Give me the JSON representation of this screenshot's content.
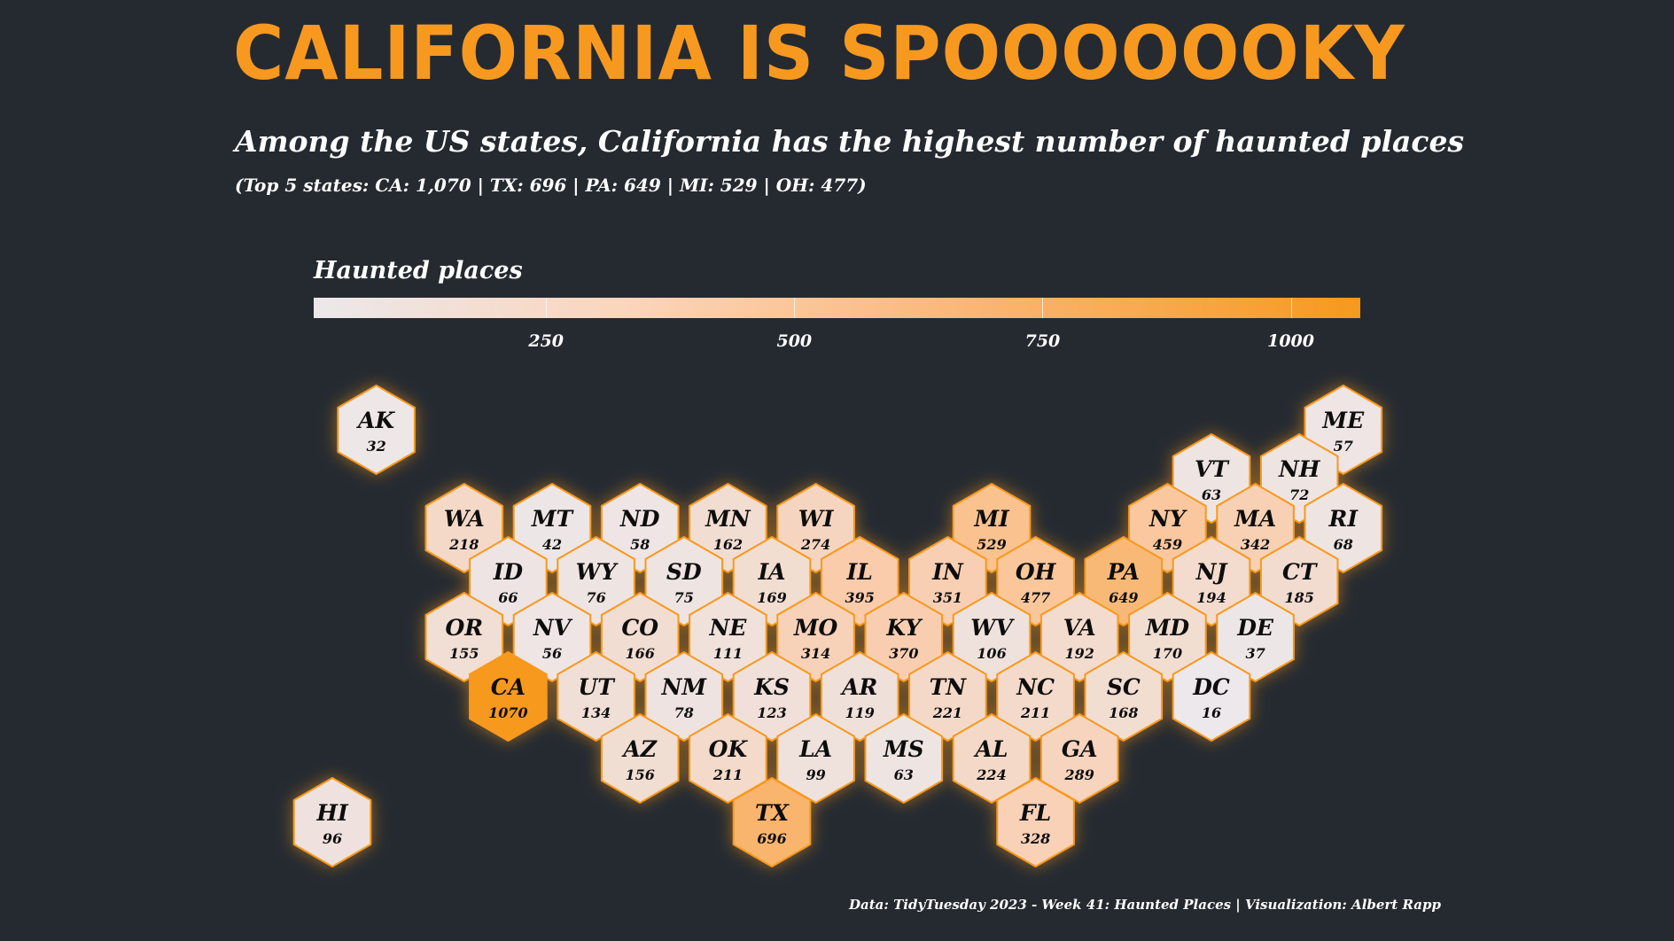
{
  "header": {
    "title": "CALIFORNIA IS SPOOOOOOKY",
    "subtitle": "Among the US states, California has the highest number of haunted places",
    "note": "(Top 5 states: CA: 1,070 | TX: 696 | PA: 649 | MI: 529 | OH: 477)"
  },
  "legend": {
    "title": "Haunted places",
    "ticks": [
      {
        "value": 250,
        "label": "250"
      },
      {
        "value": 500,
        "label": "500"
      },
      {
        "value": 750,
        "label": "750"
      },
      {
        "value": 1000,
        "label": "1000"
      }
    ]
  },
  "caption": "Data: TidyTuesday 2023 - Week 41: Haunted Places | Visualization: Albert Rapp",
  "colors": {
    "background": "#252a31",
    "accent": "#f7991f",
    "low": "#ece8eb",
    "hex_border": "#f7991f",
    "label": "#111111"
  },
  "chart_data": {
    "type": "heatmap",
    "title": "CALIFORNIA IS SPOOOOOOKY",
    "subtitle": "Among the US states, California has the highest number of haunted places",
    "legend_title": "Haunted places",
    "color_range": [
      16,
      1070
    ],
    "states": [
      {
        "abbr": "AK",
        "value": 32,
        "row": 0,
        "col": 0.5
      },
      {
        "abbr": "ME",
        "value": 57,
        "row": 0,
        "col": 11.5
      },
      {
        "abbr": "VT",
        "value": 63,
        "row": 1,
        "col": 10
      },
      {
        "abbr": "NH",
        "value": 72,
        "row": 1,
        "col": 11
      },
      {
        "abbr": "WA",
        "value": 218,
        "row": 2,
        "col": 1.5
      },
      {
        "abbr": "MT",
        "value": 42,
        "row": 2,
        "col": 2.5
      },
      {
        "abbr": "ND",
        "value": 58,
        "row": 2,
        "col": 3.5
      },
      {
        "abbr": "MN",
        "value": 162,
        "row": 2,
        "col": 4.5
      },
      {
        "abbr": "WI",
        "value": 274,
        "row": 2,
        "col": 5.5
      },
      {
        "abbr": "MI",
        "value": 529,
        "row": 2,
        "col": 7.5
      },
      {
        "abbr": "NY",
        "value": 459,
        "row": 2,
        "col": 9.5
      },
      {
        "abbr": "MA",
        "value": 342,
        "row": 2,
        "col": 10.5
      },
      {
        "abbr": "RI",
        "value": 68,
        "row": 2,
        "col": 11.5
      },
      {
        "abbr": "ID",
        "value": 66,
        "row": 3,
        "col": 2
      },
      {
        "abbr": "WY",
        "value": 76,
        "row": 3,
        "col": 3
      },
      {
        "abbr": "SD",
        "value": 75,
        "row": 3,
        "col": 4
      },
      {
        "abbr": "IA",
        "value": 169,
        "row": 3,
        "col": 5
      },
      {
        "abbr": "IL",
        "value": 395,
        "row": 3,
        "col": 6
      },
      {
        "abbr": "IN",
        "value": 351,
        "row": 3,
        "col": 7
      },
      {
        "abbr": "OH",
        "value": 477,
        "row": 3,
        "col": 8
      },
      {
        "abbr": "PA",
        "value": 649,
        "row": 3,
        "col": 9
      },
      {
        "abbr": "NJ",
        "value": 194,
        "row": 3,
        "col": 10
      },
      {
        "abbr": "CT",
        "value": 185,
        "row": 3,
        "col": 11
      },
      {
        "abbr": "OR",
        "value": 155,
        "row": 4,
        "col": 1.5
      },
      {
        "abbr": "NV",
        "value": 56,
        "row": 4,
        "col": 2.5
      },
      {
        "abbr": "CO",
        "value": 166,
        "row": 4,
        "col": 3.5
      },
      {
        "abbr": "NE",
        "value": 111,
        "row": 4,
        "col": 4.5
      },
      {
        "abbr": "MO",
        "value": 314,
        "row": 4,
        "col": 5.5
      },
      {
        "abbr": "KY",
        "value": 370,
        "row": 4,
        "col": 6.5
      },
      {
        "abbr": "WV",
        "value": 106,
        "row": 4,
        "col": 7.5
      },
      {
        "abbr": "VA",
        "value": 192,
        "row": 4,
        "col": 8.5
      },
      {
        "abbr": "MD",
        "value": 170,
        "row": 4,
        "col": 9.5
      },
      {
        "abbr": "DE",
        "value": 37,
        "row": 4,
        "col": 10.5
      },
      {
        "abbr": "CA",
        "value": 1070,
        "row": 5,
        "col": 2
      },
      {
        "abbr": "UT",
        "value": 134,
        "row": 5,
        "col": 3
      },
      {
        "abbr": "NM",
        "value": 78,
        "row": 5,
        "col": 4
      },
      {
        "abbr": "KS",
        "value": 123,
        "row": 5,
        "col": 5
      },
      {
        "abbr": "AR",
        "value": 119,
        "row": 5,
        "col": 6
      },
      {
        "abbr": "TN",
        "value": 221,
        "row": 5,
        "col": 7
      },
      {
        "abbr": "NC",
        "value": 211,
        "row": 5,
        "col": 8
      },
      {
        "abbr": "SC",
        "value": 168,
        "row": 5,
        "col": 9
      },
      {
        "abbr": "DC",
        "value": 16,
        "row": 5,
        "col": 10
      },
      {
        "abbr": "AZ",
        "value": 156,
        "row": 6,
        "col": 3.5
      },
      {
        "abbr": "OK",
        "value": 211,
        "row": 6,
        "col": 4.5
      },
      {
        "abbr": "LA",
        "value": 99,
        "row": 6,
        "col": 5.5
      },
      {
        "abbr": "MS",
        "value": 63,
        "row": 6,
        "col": 6.5
      },
      {
        "abbr": "AL",
        "value": 224,
        "row": 6,
        "col": 7.5
      },
      {
        "abbr": "GA",
        "value": 289,
        "row": 6,
        "col": 8.5
      },
      {
        "abbr": "HI",
        "value": 96,
        "row": 7,
        "col": 0
      },
      {
        "abbr": "TX",
        "value": 696,
        "row": 7,
        "col": 5
      },
      {
        "abbr": "FL",
        "value": 328,
        "row": 7,
        "col": 8
      }
    ]
  }
}
